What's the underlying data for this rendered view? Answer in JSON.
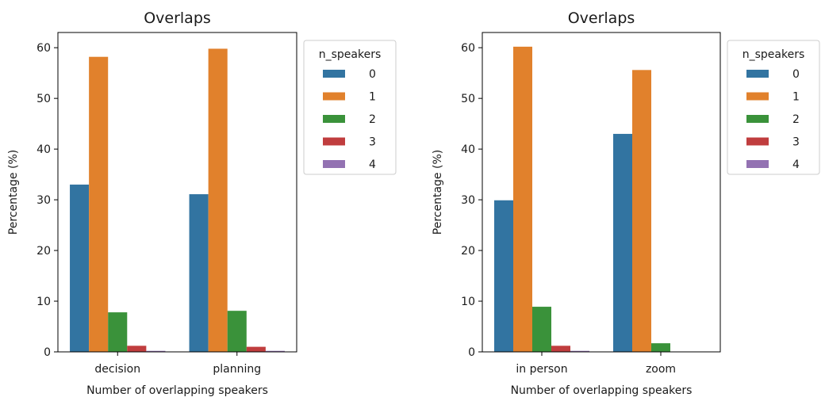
{
  "chart_data": [
    {
      "type": "bar",
      "title": "Overlaps",
      "xlabel": "Number of overlapping speakers",
      "ylabel": "Percentage (%)",
      "categories": [
        "decision",
        "planning"
      ],
      "ylim": [
        0,
        63
      ],
      "yticks": [
        "0",
        "10",
        "20",
        "30",
        "40",
        "50",
        "60"
      ],
      "grid": false,
      "legend": {
        "title": "n_speakers",
        "placement": "outside-upper-right"
      },
      "series": [
        {
          "name": "0",
          "color": "#3274a1",
          "values": [
            33.0,
            31.1
          ]
        },
        {
          "name": "1",
          "color": "#e1812c",
          "values": [
            58.2,
            59.8
          ]
        },
        {
          "name": "2",
          "color": "#3a923a",
          "values": [
            7.8,
            8.1
          ]
        },
        {
          "name": "3",
          "color": "#c03d3e",
          "values": [
            1.2,
            1.0
          ]
        },
        {
          "name": "4",
          "color": "#9372b2",
          "values": [
            0.2,
            0.2
          ]
        }
      ]
    },
    {
      "type": "bar",
      "title": "Overlaps",
      "xlabel": "Number of overlapping speakers",
      "ylabel": "Percentage (%)",
      "categories": [
        "in person",
        "zoom"
      ],
      "ylim": [
        0,
        63
      ],
      "yticks": [
        "0",
        "10",
        "20",
        "30",
        "40",
        "50",
        "60"
      ],
      "grid": false,
      "legend": {
        "title": "n_speakers",
        "placement": "outside-upper-right"
      },
      "series": [
        {
          "name": "0",
          "color": "#3274a1",
          "values": [
            29.9,
            43.0
          ]
        },
        {
          "name": "1",
          "color": "#e1812c",
          "values": [
            60.2,
            55.6
          ]
        },
        {
          "name": "2",
          "color": "#3a923a",
          "values": [
            8.9,
            1.7
          ]
        },
        {
          "name": "3",
          "color": "#c03d3e",
          "values": [
            1.2,
            0.0
          ]
        },
        {
          "name": "4",
          "color": "#9372b2",
          "values": [
            0.2,
            0.0
          ]
        }
      ]
    }
  ]
}
